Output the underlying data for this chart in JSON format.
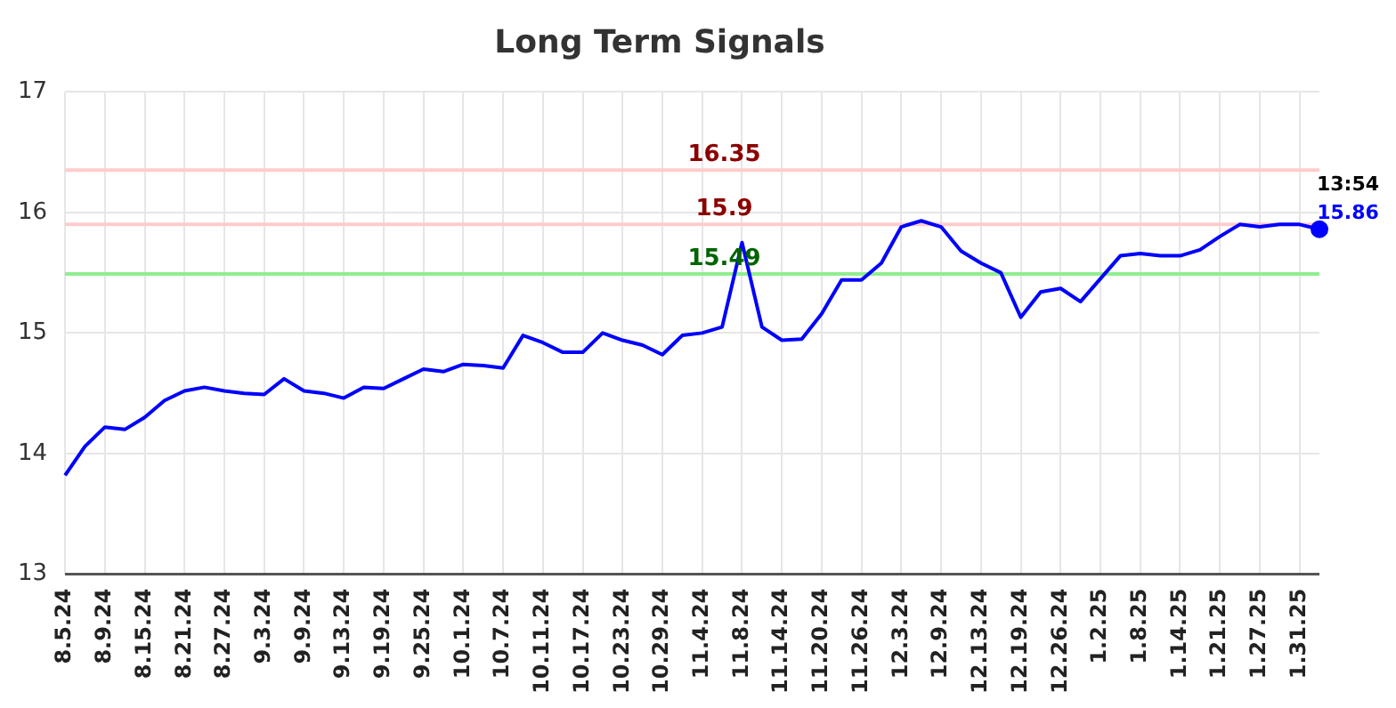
{
  "chart_data": {
    "type": "line",
    "title": "Long Term Signals",
    "categories": [
      "8.5.24",
      null,
      "8.9.24",
      null,
      "8.15.24",
      null,
      "8.21.24",
      null,
      "8.27.24",
      null,
      "9.3.24",
      null,
      "9.9.24",
      null,
      "9.13.24",
      null,
      "9.19.24",
      null,
      "9.25.24",
      null,
      "10.1.24",
      null,
      "10.7.24",
      null,
      "10.11.24",
      null,
      "10.17.24",
      null,
      "10.23.24",
      null,
      "10.29.24",
      null,
      "11.4.24",
      null,
      "11.8.24",
      null,
      "11.14.24",
      null,
      "11.20.24",
      null,
      "11.26.24",
      null,
      "12.3.24",
      null,
      "12.9.24",
      null,
      "12.13.24",
      null,
      "12.19.24",
      null,
      "12.26.24",
      null,
      "1.2.25",
      null,
      "1.8.25",
      null,
      "1.14.25",
      null,
      "1.21.25",
      null,
      "1.27.25",
      null,
      "1.31.25",
      null
    ],
    "series": [
      {
        "color": "#0000ff",
        "values": [
          13.82,
          14.06,
          14.22,
          14.2,
          14.3,
          14.44,
          14.52,
          14.55,
          14.52,
          14.5,
          14.49,
          14.62,
          14.52,
          14.5,
          14.46,
          14.55,
          14.54,
          14.62,
          14.7,
          14.68,
          14.74,
          14.73,
          14.71,
          14.98,
          14.92,
          14.84,
          14.84,
          15.0,
          14.94,
          14.9,
          14.82,
          14.98,
          15.0,
          15.05,
          15.75,
          15.05,
          14.94,
          14.95,
          15.16,
          15.44,
          15.44,
          15.58,
          15.88,
          15.93,
          15.88,
          15.68,
          15.58,
          15.5,
          15.13,
          15.34,
          15.37,
          15.26,
          15.45,
          15.64,
          15.66,
          15.64,
          15.64,
          15.69,
          15.8,
          15.9,
          15.88,
          15.9,
          15.9,
          15.86
        ]
      }
    ],
    "ylim": [
      13,
      17
    ],
    "yticks": [
      13,
      14,
      15,
      16,
      17
    ],
    "grid": true,
    "legend": false,
    "line_style": "solid",
    "ref_lines": [
      {
        "axis": "y",
        "value": 16.35,
        "label": "16.35",
        "color": "#ffcccc"
      },
      {
        "axis": "y",
        "value": 15.9,
        "label": "15.9",
        "color": "#ffcccc"
      },
      {
        "axis": "y",
        "value": 15.49,
        "label": "15.49",
        "color": "#90ee90"
      }
    ],
    "annotations": [
      "13:54",
      "15.86"
    ]
  }
}
